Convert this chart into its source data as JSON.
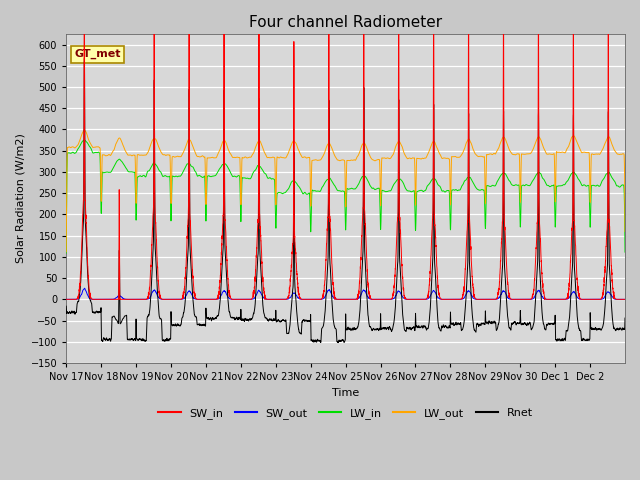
{
  "title": "Four channel Radiometer",
  "ylabel": "Solar Radiation (W/m2)",
  "xlabel": "Time",
  "annotation_label": "GT_met",
  "x_tick_labels": [
    "Nov 17",
    "Nov 18",
    "Nov 19",
    "Nov 20",
    "Nov 21",
    "Nov 22",
    "Nov 23",
    "Nov 24",
    "Nov 25",
    "Nov 26",
    "Nov 27",
    "Nov 28",
    "Nov 29",
    "Nov 30",
    "Dec 1",
    "Dec 2"
  ],
  "ylim": [
    -150,
    625
  ],
  "yticks": [
    -150,
    -100,
    -50,
    0,
    50,
    100,
    150,
    200,
    250,
    300,
    350,
    400,
    450,
    500,
    550,
    600
  ],
  "plot_bg_color": "#d8d8d8",
  "grid_color": "#ffffff",
  "colors": {
    "SW_in": "#ff0000",
    "SW_out": "#0000ff",
    "LW_in": "#00dd00",
    "LW_out": "#ffa500",
    "Rnet": "#000000"
  },
  "n_days": 16,
  "sw_in_peak": [
    555,
    265,
    570,
    545,
    540,
    535,
    460,
    550,
    570,
    555,
    545,
    530,
    525,
    525,
    520,
    525
  ],
  "sw_in_broad": [
    250,
    0,
    220,
    210,
    210,
    200,
    150,
    210,
    220,
    215,
    210,
    200,
    200,
    200,
    195,
    195
  ],
  "lw_in_base": [
    345,
    300,
    290,
    290,
    290,
    285,
    250,
    255,
    260,
    255,
    255,
    258,
    268,
    268,
    268,
    268
  ],
  "lw_out_base": [
    358,
    340,
    340,
    336,
    334,
    334,
    334,
    328,
    328,
    332,
    332,
    336,
    342,
    342,
    346,
    342
  ],
  "sw_out_peak": [
    25,
    8,
    22,
    20,
    20,
    20,
    15,
    22,
    22,
    20,
    20,
    20,
    20,
    20,
    18,
    18
  ],
  "rnet_night": [
    -30,
    -95,
    -95,
    -60,
    -45,
    -48,
    -50,
    -98,
    -70,
    -68,
    -65,
    -58,
    -55,
    -58,
    -95,
    -70
  ]
}
